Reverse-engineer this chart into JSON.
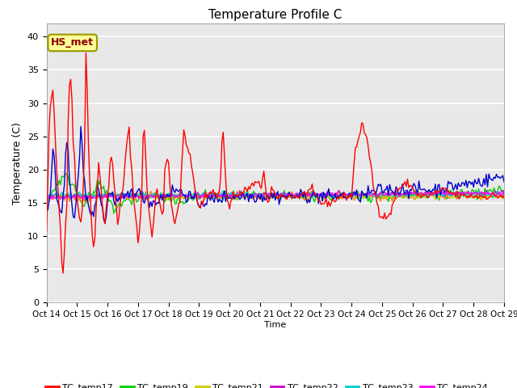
{
  "title": "Temperature Profile C",
  "xlabel": "Time",
  "ylabel": "Temperature (C)",
  "ylim": [
    0,
    42
  ],
  "yticks": [
    0,
    5,
    10,
    15,
    20,
    25,
    30,
    35,
    40
  ],
  "annotation_text": "HS_met",
  "annotation_color": "#8B0000",
  "annotation_bg": "#FFFF99",
  "background_color": "#E8E8E8",
  "series_colors": {
    "TC_temp17": "#FF0000",
    "TC_temp18": "#0000CC",
    "TC_temp19": "#00CC00",
    "TC_temp20": "#FF8800",
    "TC_temp21": "#CCCC00",
    "TC_temp22": "#CC00CC",
    "TC_temp23": "#00CCCC",
    "TC_temp24": "#FF00FF"
  },
  "x_tick_labels": [
    "Oct 14",
    "Oct 15",
    "Oct 16",
    "Oct 17",
    "Oct 18",
    "Oct 19",
    "Oct 20",
    "Oct 21",
    "Oct 22",
    "Oct 23",
    "Oct 24",
    "Oct 25",
    "Oct 26",
    "Oct 27",
    "Oct 28",
    "Oct 29"
  ],
  "n_points": 361
}
